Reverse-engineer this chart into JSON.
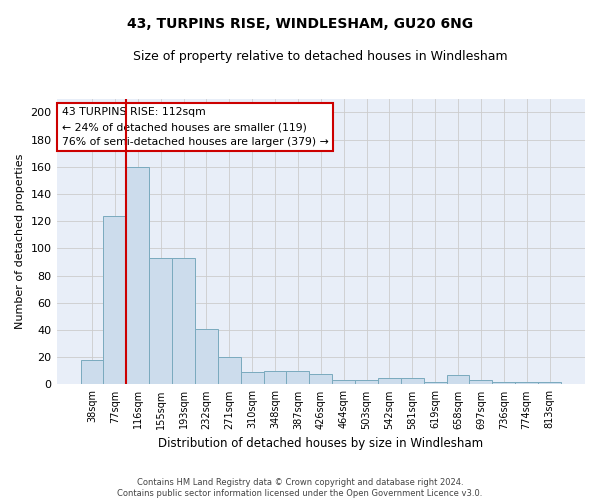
{
  "title1": "43, TURPINS RISE, WINDLESHAM, GU20 6NG",
  "title2": "Size of property relative to detached houses in Windlesham",
  "xlabel": "Distribution of detached houses by size in Windlesham",
  "ylabel": "Number of detached properties",
  "categories": [
    "38sqm",
    "77sqm",
    "116sqm",
    "155sqm",
    "193sqm",
    "232sqm",
    "271sqm",
    "310sqm",
    "348sqm",
    "387sqm",
    "426sqm",
    "464sqm",
    "503sqm",
    "542sqm",
    "581sqm",
    "619sqm",
    "658sqm",
    "697sqm",
    "736sqm",
    "774sqm",
    "813sqm"
  ],
  "values": [
    18,
    124,
    160,
    93,
    93,
    41,
    20,
    9,
    10,
    10,
    8,
    3,
    3,
    5,
    5,
    2,
    7,
    3,
    2,
    2,
    2
  ],
  "bar_color": "#ccdcec",
  "bar_edge_color": "#7aaabe",
  "grid_color": "#cccccc",
  "background_color": "#e8eef8",
  "vline_color": "#cc0000",
  "vline_x_idx": 1.5,
  "annotation_line1": "43 TURPINS RISE: 112sqm",
  "annotation_line2": "← 24% of detached houses are smaller (119)",
  "annotation_line3": "76% of semi-detached houses are larger (379) →",
  "annotation_box_color": "#ffffff",
  "annotation_box_edge": "#cc0000",
  "ylim": [
    0,
    210
  ],
  "yticks": [
    0,
    20,
    40,
    60,
    80,
    100,
    120,
    140,
    160,
    180,
    200
  ],
  "footnote": "Contains HM Land Registry data © Crown copyright and database right 2024.\nContains public sector information licensed under the Open Government Licence v3.0."
}
